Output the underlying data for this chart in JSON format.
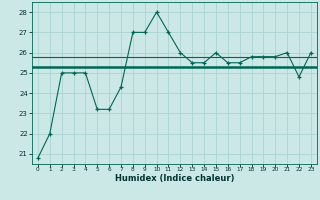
{
  "xlabel": "Humidex (Indice chaleur)",
  "background_color": "#cce8e6",
  "grid_color": "#aad4d2",
  "line_color": "#006655",
  "hours": [
    0,
    1,
    2,
    3,
    4,
    5,
    6,
    7,
    8,
    9,
    10,
    11,
    12,
    13,
    14,
    15,
    16,
    17,
    18,
    19,
    20,
    21,
    22,
    23
  ],
  "values": [
    20.8,
    22.0,
    25.0,
    25.0,
    25.0,
    23.2,
    23.2,
    24.3,
    27.0,
    27.0,
    28.0,
    27.0,
    26.0,
    25.5,
    25.5,
    26.0,
    25.5,
    25.5,
    25.8,
    25.8,
    25.8,
    26.0,
    24.8,
    26.0
  ],
  "avg_line": 25.3,
  "avg_line2": 25.8,
  "ylim": [
    20.5,
    28.5
  ],
  "yticks": [
    21,
    22,
    23,
    24,
    25,
    26,
    27,
    28
  ],
  "xticks": [
    0,
    1,
    2,
    3,
    4,
    5,
    6,
    7,
    8,
    9,
    10,
    11,
    12,
    13,
    14,
    15,
    16,
    17,
    18,
    19,
    20,
    21,
    22,
    23
  ]
}
